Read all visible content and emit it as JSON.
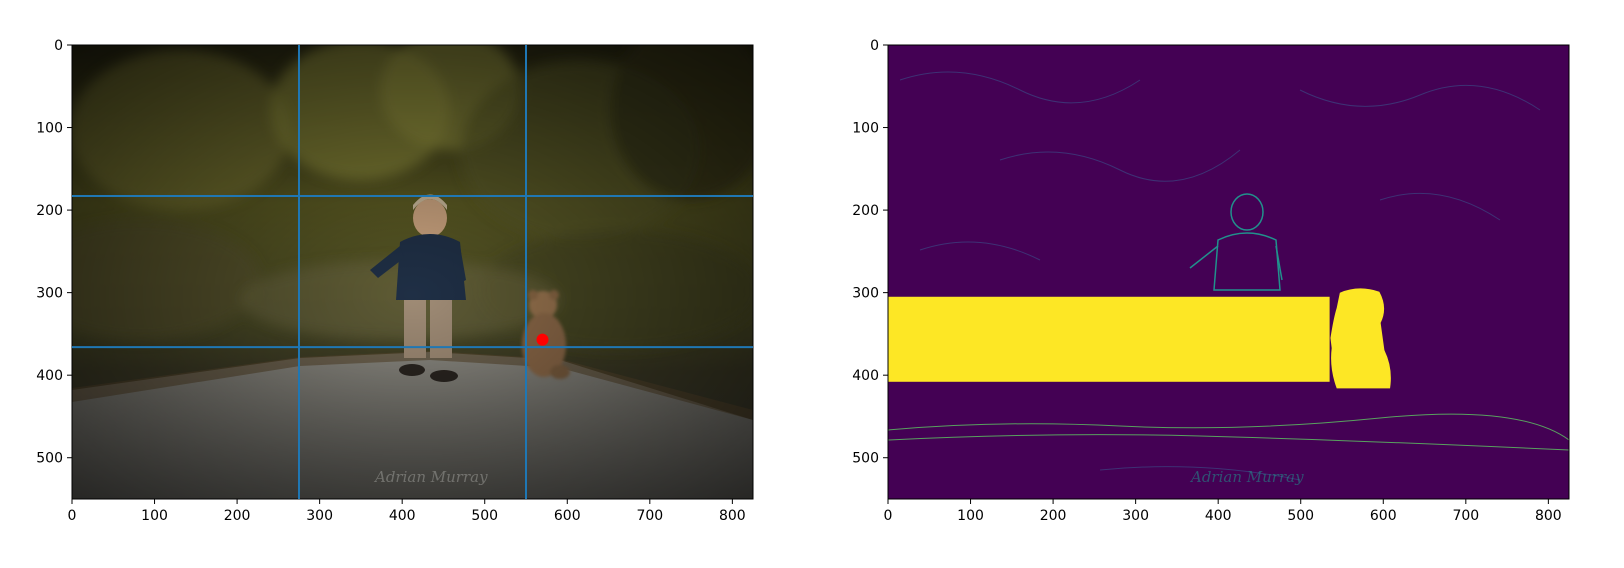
{
  "figure": {
    "left_panel": {
      "watermark": "Adrian Murray"
    },
    "right_panel": {
      "watermark": "Adrian Murray"
    }
  },
  "chart_data": [
    {
      "type": "image",
      "xlim": [
        0,
        825
      ],
      "ylim": [
        550,
        0
      ],
      "xticks": [
        0,
        100,
        200,
        300,
        400,
        500,
        600,
        700,
        800
      ],
      "yticks": [
        0,
        100,
        200,
        300,
        400,
        500
      ],
      "gridlines": {
        "color": "#1f77b4",
        "vertical_x": [
          275,
          550
        ],
        "horizontal_y": [
          183,
          366
        ]
      },
      "marker": {
        "x": 570,
        "y": 357,
        "color": "#ff0000"
      },
      "colors": {
        "background_dark": "#1e1d12",
        "foliage": "#6b6a2a",
        "road": "#77756f"
      }
    },
    {
      "type": "heatmap",
      "colormap": "viridis",
      "xlim": [
        0,
        825
      ],
      "ylim": [
        550,
        0
      ],
      "xticks": [
        0,
        100,
        200,
        300,
        400,
        500,
        600,
        700,
        800
      ],
      "yticks": [
        0,
        100,
        200,
        300,
        400,
        500
      ],
      "highlight_region": {
        "x": [
          0,
          535
        ],
        "y": [
          305,
          408
        ],
        "color": "#fde725"
      },
      "highlight_blob": {
        "x": [
          536,
          612
        ],
        "y": [
          294,
          416
        ],
        "color": "#fde725"
      },
      "colors": {
        "background": "#440154",
        "edge": "#21918c"
      }
    }
  ]
}
